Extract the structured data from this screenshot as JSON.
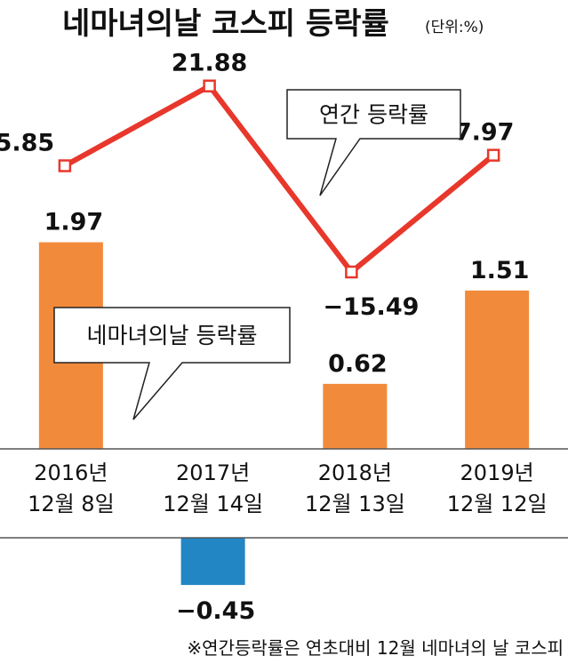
{
  "title": "네마녀의날 코스피 등락률",
  "unit": "(단위:%)",
  "footnote": "※연간등락률은 연초대비 12월 네마녀의 날 코스피",
  "colors": {
    "line": "#e8372b",
    "bar_positive": "#f28a3b",
    "bar_negative": "#2386c4"
  },
  "chart_data": {
    "type": "bar+line",
    "categories": [
      [
        "2016년",
        "12월 8일"
      ],
      [
        "2017년",
        "12월 14일"
      ],
      [
        "2018년",
        "12월 13일"
      ],
      [
        "2019년",
        "12월 12일"
      ]
    ],
    "series": [
      {
        "name": "연간 등락률",
        "type": "line",
        "values": [
          5.85,
          21.88,
          -15.49,
          7.97
        ],
        "labels": [
          "5.85",
          "21.88",
          "−15.49",
          "7.97"
        ]
      },
      {
        "name": "네마녀의날 등락률",
        "type": "bar",
        "values": [
          1.97,
          -0.45,
          0.62,
          1.51
        ],
        "labels": [
          "1.97",
          "−0.45",
          "0.62",
          "1.51"
        ]
      }
    ]
  }
}
